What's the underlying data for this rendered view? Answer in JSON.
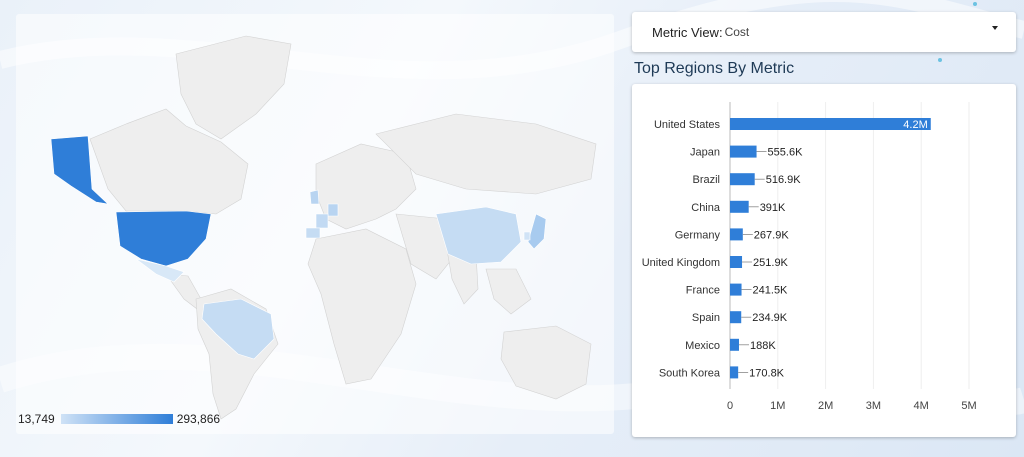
{
  "metric": {
    "label": "Metric View:",
    "value": "Cost"
  },
  "map": {
    "legend_min": "13,749",
    "legend_max": "293,866",
    "colors": {
      "low": "#cfe2f6",
      "high": "#2f7ed8",
      "none": "#eeeeee"
    }
  },
  "chart_title": "Top Regions By Metric",
  "chart_data": {
    "type": "bar",
    "orientation": "horizontal",
    "categories": [
      "United States",
      "Japan",
      "Brazil",
      "China",
      "Germany",
      "United Kingdom",
      "France",
      "Spain",
      "Mexico",
      "South Korea"
    ],
    "values": [
      4200000,
      555600,
      516900,
      391000,
      267900,
      251900,
      241500,
      234900,
      188000,
      170800
    ],
    "labels": [
      "4.2M",
      "555.6K",
      "516.9K",
      "391K",
      "267.9K",
      "251.9K",
      "241.5K",
      "234.9K",
      "188K",
      "170.8K"
    ],
    "x_ticks": [
      "0",
      "1M",
      "2M",
      "3M",
      "4M",
      "5M"
    ],
    "xlim": [
      0,
      5000000
    ],
    "bar_color": "#2f7ed8"
  }
}
